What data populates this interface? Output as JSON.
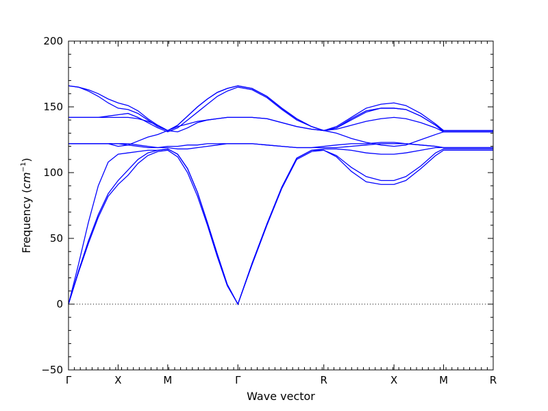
{
  "chart_data": {
    "type": "line",
    "xlabel": "Wave vector",
    "ylabel": "Frequency",
    "ylabel_unit_html": "cm",
    "ylabel_unit_sup": "−1",
    "ylim": [
      -50,
      200
    ],
    "yticks": [
      -50,
      0,
      50,
      100,
      150,
      200
    ],
    "ytick_labels": [
      "−50",
      "0",
      "50",
      "100",
      "150",
      "200"
    ],
    "high_symmetry_points": [
      {
        "label": "Γ",
        "x": 0.0
      },
      {
        "label": "X",
        "x": 0.5
      },
      {
        "label": "M",
        "x": 1.0
      },
      {
        "label": "Γ",
        "x": 1.7071
      },
      {
        "label": "R",
        "x": 2.5731
      },
      {
        "label": "X",
        "x": 3.2802
      },
      {
        "label": "M",
        "x": 3.7802
      },
      {
        "label": "R",
        "x": 4.2802
      }
    ],
    "zero_line": {
      "y": 0,
      "style": "dotted"
    },
    "series_color": "#0000ff",
    "series": [
      {
        "x": [
          0,
          0.1,
          0.2,
          0.3,
          0.4,
          0.5,
          0.6,
          0.7,
          0.8,
          0.9,
          1.0,
          1.1,
          1.2,
          1.3,
          1.4,
          1.5,
          1.6,
          1.7071,
          1.85,
          2.0,
          2.15,
          2.3,
          2.45,
          2.5731,
          2.7,
          2.85,
          3.0,
          3.15,
          3.2802,
          3.4,
          3.55,
          3.7,
          3.7802,
          4.0,
          4.2802
        ],
        "y": [
          0,
          24,
          46,
          66,
          82,
          91,
          98,
          107,
          113,
          116,
          117,
          112,
          100,
          82,
          60,
          36,
          14,
          0,
          30,
          60,
          88,
          110,
          116,
          117,
          112,
          101,
          93,
          91,
          91,
          94,
          103,
          113,
          117,
          117,
          117
        ]
      },
      {
        "x": [
          0,
          0.1,
          0.2,
          0.3,
          0.4,
          0.5,
          0.6,
          0.7,
          0.8,
          0.9,
          1.0,
          1.1,
          1.2,
          1.3,
          1.4,
          1.5,
          1.6,
          1.7071,
          1.85,
          2.0,
          2.15,
          2.3,
          2.45,
          2.5731,
          2.7,
          2.85,
          3.0,
          3.15,
          3.2802,
          3.4,
          3.55,
          3.7,
          3.7802,
          4.0,
          4.2802
        ],
        "y": [
          0,
          25,
          48,
          68,
          84,
          94,
          102,
          110,
          115,
          117,
          118,
          114,
          103,
          85,
          62,
          38,
          15,
          0,
          31,
          61,
          89,
          111,
          117,
          117,
          113,
          104,
          97,
          94,
          94,
          97,
          105,
          115,
          118,
          118,
          118
        ]
      },
      {
        "x": [
          0,
          0.1,
          0.2,
          0.3,
          0.4,
          0.5,
          0.6,
          0.7,
          0.8,
          0.9,
          1.0,
          1.1,
          1.2,
          1.3,
          1.4,
          1.5,
          1.6,
          1.7071,
          1.85,
          2.0,
          2.15,
          2.3,
          2.45,
          2.5731,
          2.7,
          2.85,
          3.0,
          3.15,
          3.2802,
          3.4,
          3.55,
          3.7,
          3.7802,
          4.0,
          4.2802
        ],
        "y": [
          0,
          30,
          62,
          90,
          108,
          114,
          115,
          116,
          117,
          117,
          118,
          114,
          103,
          85,
          62,
          38,
          15,
          0,
          31,
          61,
          89,
          111,
          117,
          118,
          118,
          117,
          115,
          114,
          114,
          115,
          117,
          119,
          119,
          119,
          119
        ]
      },
      {
        "x": [
          0,
          0.1,
          0.2,
          0.3,
          0.4,
          0.5,
          0.6,
          0.7,
          0.8,
          0.9,
          1.0,
          1.1,
          1.2,
          1.3,
          1.4,
          1.5,
          1.6,
          1.7071,
          1.85,
          2.0,
          2.15,
          2.3,
          2.45,
          2.5731,
          2.7,
          2.85,
          3.0,
          3.15,
          3.2802,
          3.4,
          3.55,
          3.7,
          3.7802,
          4.0,
          4.2802
        ],
        "y": [
          122,
          122,
          122,
          122,
          122,
          122,
          121,
          120,
          119,
          119,
          120,
          120,
          121,
          121,
          122,
          122,
          122,
          122,
          122,
          121,
          120,
          119,
          119,
          119,
          119,
          120,
          121,
          122,
          122,
          122,
          121,
          120,
          119,
          119,
          119
        ]
      },
      {
        "x": [
          0,
          0.1,
          0.2,
          0.3,
          0.4,
          0.5,
          0.6,
          0.7,
          0.8,
          0.9,
          1.0,
          1.1,
          1.2,
          1.3,
          1.4,
          1.5,
          1.6,
          1.7071,
          1.85,
          2.0,
          2.15,
          2.3,
          2.45,
          2.5731,
          2.7,
          2.85,
          3.0,
          3.15,
          3.2802,
          3.4,
          3.55,
          3.7,
          3.7802,
          4.0,
          4.2802
        ],
        "y": [
          122,
          122,
          122,
          122,
          122,
          122,
          122,
          121,
          120,
          119,
          119,
          118,
          118,
          119,
          120,
          121,
          122,
          122,
          122,
          121,
          120,
          119,
          119,
          120,
          121,
          122,
          122,
          123,
          123,
          122,
          121,
          120,
          119,
          119,
          119
        ]
      },
      {
        "x": [
          0,
          0.1,
          0.2,
          0.3,
          0.4,
          0.5,
          0.6,
          0.7,
          0.8,
          0.9,
          1.0,
          1.1,
          1.2,
          1.3,
          1.4,
          1.5,
          1.6,
          1.7071,
          1.85,
          2.0,
          2.15,
          2.3,
          2.45,
          2.5731,
          2.7,
          2.85,
          3.0,
          3.15,
          3.2802,
          3.4,
          3.55,
          3.7,
          3.7802,
          4.0,
          4.2802
        ],
        "y": [
          122,
          122,
          122,
          122,
          122,
          120,
          121,
          124,
          127,
          129,
          132,
          135,
          137,
          139,
          140,
          141,
          142,
          142,
          142,
          141,
          138,
          135,
          133,
          132,
          130,
          126,
          123,
          121,
          120,
          121,
          125,
          129,
          131,
          131,
          131
        ]
      },
      {
        "x": [
          0,
          0.1,
          0.2,
          0.3,
          0.4,
          0.5,
          0.6,
          0.7,
          0.8,
          0.9,
          1.0,
          1.1,
          1.2,
          1.3,
          1.4,
          1.5,
          1.6,
          1.7071,
          1.85,
          2.0,
          2.15,
          2.3,
          2.45,
          2.5731,
          2.7,
          2.85,
          3.0,
          3.15,
          3.2802,
          3.4,
          3.55,
          3.7,
          3.7802,
          4.0,
          4.2802
        ],
        "y": [
          142,
          142,
          142,
          142,
          142,
          142,
          142,
          141,
          139,
          136,
          132,
          131,
          134,
          138,
          140,
          141,
          142,
          142,
          142,
          141,
          138,
          135,
          133,
          132,
          133,
          136,
          139,
          141,
          142,
          141,
          138,
          134,
          131,
          131,
          131
        ]
      },
      {
        "x": [
          0,
          0.1,
          0.2,
          0.3,
          0.4,
          0.5,
          0.6,
          0.7,
          0.8,
          0.9,
          1.0,
          1.1,
          1.2,
          1.3,
          1.4,
          1.5,
          1.6,
          1.7071,
          1.85,
          2.0,
          2.15,
          2.3,
          2.45,
          2.5731,
          2.7,
          2.85,
          3.0,
          3.15,
          3.2802,
          3.4,
          3.55,
          3.7,
          3.7802,
          4.0,
          4.2802
        ],
        "y": [
          142,
          142,
          142,
          142,
          143,
          144,
          145,
          142,
          138,
          134,
          131,
          134,
          140,
          146,
          152,
          158,
          162,
          165,
          163,
          157,
          148,
          140,
          135,
          132,
          134,
          140,
          146,
          149,
          149,
          148,
          143,
          136,
          131,
          131,
          131
        ]
      },
      {
        "x": [
          0,
          0.1,
          0.2,
          0.3,
          0.4,
          0.5,
          0.6,
          0.7,
          0.8,
          0.9,
          1.0,
          1.1,
          1.2,
          1.3,
          1.4,
          1.5,
          1.6,
          1.7071,
          1.85,
          2.0,
          2.15,
          2.3,
          2.45,
          2.5731,
          2.7,
          2.85,
          3.0,
          3.15,
          3.2802,
          3.4,
          3.55,
          3.7,
          3.7802,
          4.0,
          4.2802
        ],
        "y": [
          166,
          165,
          162,
          158,
          153,
          149,
          148,
          145,
          140,
          135,
          132,
          136,
          143,
          150,
          156,
          161,
          164,
          166,
          164,
          158,
          149,
          141,
          135,
          132,
          134,
          141,
          147,
          149,
          149,
          148,
          143,
          136,
          132,
          132,
          132
        ]
      },
      {
        "x": [
          0,
          0.1,
          0.2,
          0.3,
          0.4,
          0.5,
          0.6,
          0.7,
          0.8,
          0.9,
          1.0,
          1.1,
          1.2,
          1.3,
          1.4,
          1.5,
          1.6,
          1.7071,
          1.85,
          2.0,
          2.15,
          2.3,
          2.45,
          2.5731,
          2.7,
          2.85,
          3.0,
          3.15,
          3.2802,
          3.4,
          3.55,
          3.7,
          3.7802,
          4.0,
          4.2802
        ],
        "y": [
          166,
          165,
          163,
          160,
          156,
          153,
          151,
          147,
          141,
          136,
          132,
          136,
          143,
          150,
          156,
          161,
          164,
          166,
          164,
          158,
          149,
          141,
          135,
          132,
          135,
          142,
          149,
          152,
          153,
          151,
          145,
          137,
          132,
          132,
          132
        ]
      }
    ]
  }
}
